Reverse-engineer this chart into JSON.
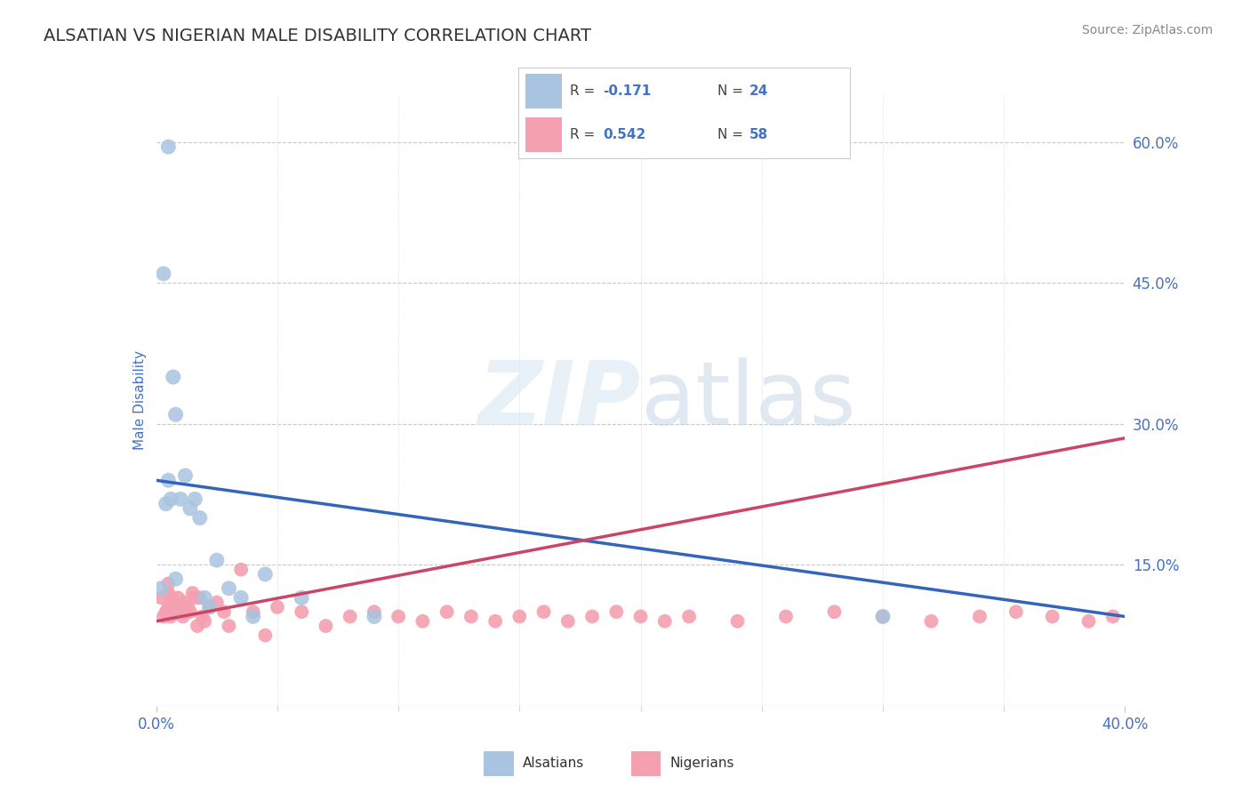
{
  "title": "ALSATIAN VS NIGERIAN MALE DISABILITY CORRELATION CHART",
  "source_text": "Source: ZipAtlas.com",
  "ylabel": "Male Disability",
  "xlim": [
    0.0,
    0.4
  ],
  "ylim": [
    0.0,
    0.65
  ],
  "yticks_right": [
    0.0,
    0.15,
    0.3,
    0.45,
    0.6
  ],
  "yticklabels_right": [
    "",
    "15.0%",
    "30.0%",
    "45.0%",
    "60.0%"
  ],
  "background_color": "#ffffff",
  "grid_color": "#c8c8c8",
  "title_color": "#333333",
  "axis_label_color": "#4472c4",
  "alsatian_color": "#a8c4e0",
  "nigerian_color": "#f4a0b0",
  "alsatian_line_color": "#3366bb",
  "nigerian_line_color": "#cc4466",
  "legend_R1_label": "R = ",
  "legend_R1_val": "-0.171",
  "legend_N1_label": "N = ",
  "legend_N1_val": "24",
  "legend_R2_label": "R = ",
  "legend_R2_val": "0.542",
  "legend_N2_label": "N = ",
  "legend_N2_val": "58",
  "alsatian_label": "Alsatians",
  "nigerian_label": "Nigerians",
  "watermark": "ZIPatlas",
  "als_line_x0": 0.0,
  "als_line_y0": 0.24,
  "als_line_x1": 0.4,
  "als_line_y1": 0.095,
  "nig_line_x0": 0.0,
  "nig_line_y0": 0.09,
  "nig_line_x1": 0.4,
  "nig_line_y1": 0.285,
  "alsatian_x": [
    0.002,
    0.003,
    0.004,
    0.005,
    0.006,
    0.007,
    0.008,
    0.01,
    0.012,
    0.014,
    0.016,
    0.018,
    0.02,
    0.022,
    0.025,
    0.03,
    0.035,
    0.04,
    0.045,
    0.06,
    0.09,
    0.3,
    0.005,
    0.008
  ],
  "alsatian_y": [
    0.125,
    0.46,
    0.215,
    0.24,
    0.22,
    0.35,
    0.31,
    0.22,
    0.245,
    0.21,
    0.22,
    0.2,
    0.115,
    0.105,
    0.155,
    0.125,
    0.115,
    0.095,
    0.14,
    0.115,
    0.095,
    0.095,
    0.595,
    0.135
  ],
  "nigerian_x": [
    0.002,
    0.003,
    0.004,
    0.005,
    0.006,
    0.007,
    0.008,
    0.009,
    0.01,
    0.011,
    0.012,
    0.013,
    0.014,
    0.015,
    0.016,
    0.017,
    0.018,
    0.019,
    0.02,
    0.022,
    0.025,
    0.028,
    0.03,
    0.035,
    0.04,
    0.045,
    0.05,
    0.06,
    0.07,
    0.08,
    0.09,
    0.1,
    0.11,
    0.12,
    0.13,
    0.14,
    0.15,
    0.16,
    0.17,
    0.18,
    0.19,
    0.2,
    0.21,
    0.22,
    0.24,
    0.26,
    0.28,
    0.3,
    0.32,
    0.34,
    0.355,
    0.37,
    0.385,
    0.395,
    0.005,
    0.005,
    0.006,
    0.006
  ],
  "nigerian_y": [
    0.115,
    0.095,
    0.1,
    0.105,
    0.095,
    0.11,
    0.1,
    0.115,
    0.105,
    0.095,
    0.11,
    0.105,
    0.1,
    0.12,
    0.115,
    0.085,
    0.115,
    0.095,
    0.09,
    0.105,
    0.11,
    0.1,
    0.085,
    0.145,
    0.1,
    0.075,
    0.105,
    0.1,
    0.085,
    0.095,
    0.1,
    0.095,
    0.09,
    0.1,
    0.095,
    0.09,
    0.095,
    0.1,
    0.09,
    0.095,
    0.1,
    0.095,
    0.09,
    0.095,
    0.09,
    0.095,
    0.1,
    0.095,
    0.09,
    0.095,
    0.1,
    0.095,
    0.09,
    0.095,
    0.13,
    0.12,
    0.115,
    0.11
  ]
}
